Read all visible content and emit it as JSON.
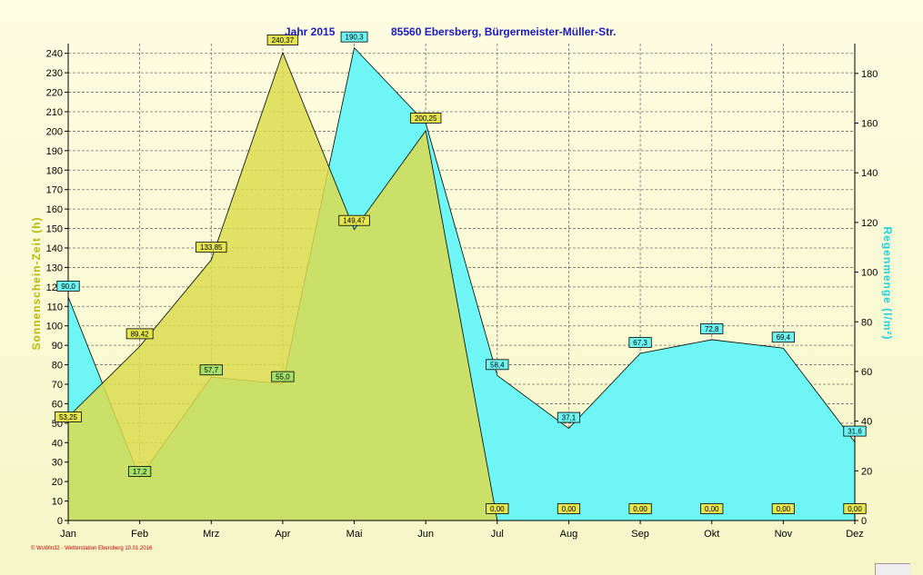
{
  "header": {
    "year_label": "Jahr  2015",
    "station_label": "85560 Ebersberg, Bürgermeister-Müller-Str."
  },
  "footer": {
    "credit": "© WsWin32 - Wetterstation Ebersberg 10.01.2016"
  },
  "chart_data": {
    "type": "area",
    "title": "Jahr  2015",
    "subtitle": "85560 Ebersberg, Bürgermeister-Müller-Str.",
    "categories": [
      "Jan",
      "Feb",
      "Mrz",
      "Apr",
      "Mai",
      "Jun",
      "Jul",
      "Aug",
      "Sep",
      "Okt",
      "Nov",
      "Dez"
    ],
    "y_left": {
      "label": "Sonnenschein-Zeit  (h)",
      "ylim": [
        0,
        245
      ],
      "ticks": [
        0,
        10,
        20,
        30,
        40,
        50,
        60,
        70,
        80,
        90,
        100,
        110,
        120,
        130,
        140,
        150,
        160,
        170,
        180,
        190,
        200,
        210,
        220,
        230,
        240
      ]
    },
    "y_right": {
      "label": "Regenmenge  (l/m²)",
      "ylim": [
        0,
        192
      ],
      "ticks": [
        0,
        20,
        40,
        60,
        80,
        100,
        120,
        140,
        160,
        180
      ]
    },
    "grid": true,
    "series": [
      {
        "axis": "left",
        "color": "#dcdc50",
        "values": [
          53.25,
          89.42,
          133.85,
          240.37,
          149.47,
          200.25,
          0,
          0,
          0,
          0,
          0,
          0
        ],
        "labels": [
          "53,25",
          "89,42",
          "133,85",
          "240,37",
          "149,47",
          "200,25",
          "0,00",
          "0,00",
          "0,00",
          "0,00",
          "0,00",
          "0,00"
        ]
      },
      {
        "axis": "right",
        "color": "#6ef6f4",
        "values": [
          90.0,
          17.2,
          57.7,
          55.0,
          190.3,
          160.0,
          58.4,
          37.1,
          67.3,
          72.8,
          69.4,
          31.6
        ],
        "labels": [
          "90,0",
          "17,2",
          "57,7",
          "55,0",
          "190,3",
          "",
          "58,4",
          "37,1",
          "67,3",
          "72,8",
          "69,4",
          "31,6"
        ]
      }
    ]
  }
}
